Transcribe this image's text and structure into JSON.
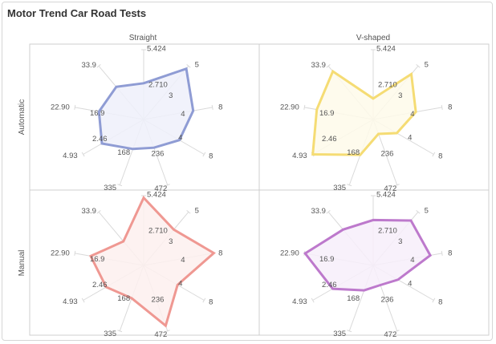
{
  "title": "Motor Trend Car Road Tests",
  "chart_data": {
    "type": "radar",
    "columns": [
      "Straight",
      "V-shaped"
    ],
    "rows": [
      "Automatic",
      "Manual"
    ],
    "axis_labels": [
      "5.424",
      "5",
      "8",
      "8",
      "472",
      "335",
      "4.93",
      "22.90",
      "33.9"
    ],
    "inner_labels": [
      "2.710",
      "3",
      "4",
      "4",
      "236",
      "168",
      "2.46",
      "16.9"
    ],
    "axis_max": [
      5.424,
      5,
      8,
      8,
      472,
      335,
      4.93,
      22.9,
      33.9
    ],
    "axis_mid": [
      2.71,
      3,
      4,
      4,
      236,
      168,
      2.46,
      16.9,
      0
    ],
    "panels": [
      {
        "row": "Automatic",
        "column": "Straight",
        "color": "#8f9cd4",
        "fill": "#eef0fa",
        "values": [
          0.52,
          0.95,
          0.72,
          0.59,
          0.43,
          0.45,
          0.69,
          0.65,
          0.61
        ]
      },
      {
        "row": "Automatic",
        "column": "V-shaped",
        "color": "#f5dc74",
        "fill": "#fefaea",
        "values": [
          0.3,
          0.85,
          0.62,
          0.39,
          0.22,
          0.54,
          1.0,
          0.82,
          0.9
        ]
      },
      {
        "row": "Manual",
        "column": "Straight",
        "color": "#ef9892",
        "fill": "#fdf0ee",
        "values": [
          0.97,
          0.67,
          1.02,
          0.56,
          0.92,
          0.5,
          0.62,
          0.77,
          0.45
        ]
      },
      {
        "row": "Manual",
        "column": "V-shaped",
        "color": "#bd79cc",
        "fill": "#f7eefa",
        "values": [
          0.65,
          0.84,
          0.83,
          0.41,
          0.3,
          0.38,
          0.67,
          0.99,
          0.67
        ]
      }
    ]
  }
}
